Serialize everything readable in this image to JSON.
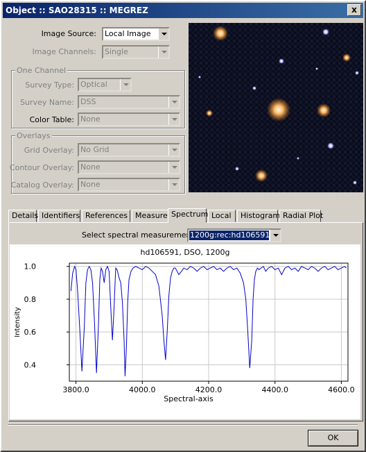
{
  "window": {
    "title": "Object :: SAO28315 :: MEGREZ",
    "close_label": "x"
  },
  "image_source": {
    "label": "Image Source:",
    "value": "Local Image"
  },
  "image_channels": {
    "label": "Image Channels:",
    "value": "Single"
  },
  "one_channel": {
    "title": "One Channel",
    "survey_type": {
      "label": "Survey Type:",
      "value": "Optical"
    },
    "survey_name": {
      "label": "Survey Name:",
      "value": "DSS"
    },
    "color_table": {
      "label": "Color Table:",
      "value": "None"
    }
  },
  "overlays": {
    "title": "Overlays",
    "grid": {
      "label": "Grid Overlay:",
      "value": "No Grid"
    },
    "contour": {
      "label": "Contour Overlay:",
      "value": "None"
    },
    "catalog": {
      "label": "Catalog Overlay:",
      "value": "None"
    }
  },
  "tabs": [
    "Details",
    "Identifiers",
    "References",
    "Measures",
    "Spectrum",
    "Local",
    "Histogram",
    "Radial Plot"
  ],
  "active_tab": "Spectrum",
  "spectrum": {
    "select_label": "Select spectral measurement:",
    "select_value": "1200g:rec:hd106591"
  },
  "ok_label": "OK",
  "chart_data": {
    "type": "line",
    "title": "hd106591, DSO, 1200g",
    "xlabel": "Spectral-axis",
    "ylabel": "Intensity",
    "xlim": [
      3780,
      4620
    ],
    "ylim": [
      0.3,
      1.02
    ],
    "xticks": [
      "3800.0",
      "4000.0",
      "4200.0",
      "4400.0",
      "4600.0"
    ],
    "yticks": [
      "0.4",
      "0.6",
      "0.8",
      "1.0"
    ],
    "grid": true,
    "series": [
      {
        "color": "#0000cc",
        "x": [
          3785,
          3790,
          3796,
          3800,
          3805,
          3812,
          3818,
          3825,
          3830,
          3835,
          3840,
          3845,
          3850,
          3856,
          3862,
          3868,
          3872,
          3876,
          3880,
          3885,
          3890,
          3895,
          3900,
          3905,
          3910,
          3915,
          3918,
          3920,
          3924,
          3930,
          3935,
          3940,
          3945,
          3948,
          3952,
          3956,
          3960,
          3966,
          3972,
          3980,
          3990,
          4000,
          4010,
          4020,
          4030,
          4040,
          4050,
          4060,
          4065,
          4070,
          4075,
          4080,
          4085,
          4090,
          4095,
          4100,
          4105,
          4110,
          4118,
          4125,
          4135,
          4145,
          4155,
          4165,
          4175,
          4185,
          4195,
          4205,
          4215,
          4225,
          4235,
          4245,
          4255,
          4265,
          4275,
          4285,
          4295,
          4305,
          4312,
          4318,
          4324,
          4330,
          4334,
          4338,
          4342,
          4347,
          4352,
          4358,
          4365,
          4372,
          4380,
          4390,
          4400,
          4410,
          4420,
          4430,
          4440,
          4450,
          4460,
          4470,
          4480,
          4490,
          4500,
          4510,
          4520,
          4530,
          4540,
          4550,
          4560,
          4570,
          4580,
          4590,
          4600,
          4610,
          4615
        ],
        "y": [
          0.85,
          0.96,
          1.0,
          0.98,
          0.85,
          0.6,
          0.36,
          0.62,
          0.9,
          0.98,
          1.0,
          0.98,
          0.9,
          0.65,
          0.35,
          0.65,
          0.92,
          0.99,
          0.97,
          0.9,
          0.98,
          1.0,
          0.97,
          0.75,
          0.55,
          0.75,
          0.9,
          0.99,
          0.98,
          0.93,
          0.9,
          0.78,
          0.55,
          0.33,
          0.5,
          0.78,
          0.92,
          0.97,
          0.99,
          1.0,
          0.99,
          0.98,
          1.0,
          0.99,
          0.97,
          0.95,
          0.88,
          0.7,
          0.55,
          0.43,
          0.6,
          0.82,
          0.93,
          0.97,
          0.99,
          0.99,
          0.97,
          0.95,
          0.97,
          0.99,
          0.98,
          1.0,
          0.99,
          0.97,
          0.99,
          1.0,
          0.98,
          0.99,
          1.0,
          0.98,
          0.99,
          0.97,
          0.99,
          1.0,
          0.98,
          0.99,
          0.96,
          0.9,
          0.8,
          0.6,
          0.38,
          0.55,
          0.8,
          0.92,
          0.97,
          0.99,
          0.98,
          0.99,
          1.0,
          0.97,
          0.99,
          1.0,
          0.98,
          0.99,
          0.95,
          0.99,
          1.0,
          0.98,
          0.99,
          0.97,
          1.0,
          0.99,
          0.98,
          1.0,
          0.99,
          0.97,
          0.99,
          1.0,
          0.98,
          0.99,
          1.0,
          0.98,
          0.99,
          1.0,
          0.99
        ]
      }
    ]
  }
}
